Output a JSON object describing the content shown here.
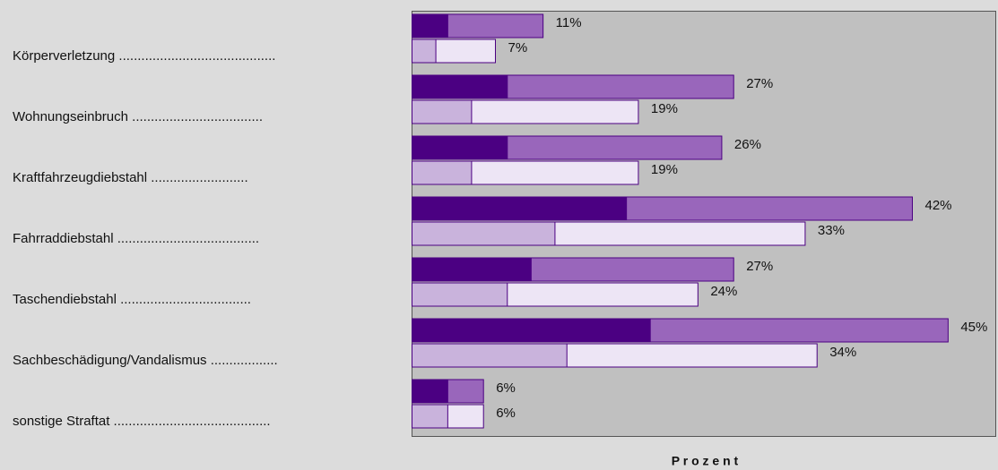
{
  "chart_data": {
    "type": "bar",
    "orientation": "horizontal",
    "categories": [
      "Körperverletzung ..........................................",
      "Wohnungseinbruch ...................................",
      "Kraftfahrzeugdiebstahl ..........................",
      "Fahrraddiebstahl ......................................",
      "Taschendiebstahl  ...................................",
      "Sachbeschädigung/Vandalismus  ..................",
      "sonstige Straftat .........................................."
    ],
    "xlabel": "P r o z e n t",
    "xlim": [
      0,
      49
    ],
    "bars": [
      {
        "values": [
          11,
          27,
          26,
          42,
          27,
          45,
          6
        ],
        "value_labels": [
          "11%",
          "27%",
          "26%",
          "42%",
          "27%",
          "45%",
          "6%"
        ],
        "color": "#9966bb",
        "inner": {
          "values": [
            3,
            8,
            8,
            18,
            10,
            20,
            3
          ],
          "color": "#4b0082"
        }
      },
      {
        "values": [
          7,
          19,
          19,
          33,
          24,
          34,
          6
        ],
        "value_labels": [
          "7%",
          "19%",
          "19%",
          "33%",
          "24%",
          "34%",
          "6%"
        ],
        "color": "#ede5f5",
        "inner": {
          "values": [
            2,
            5,
            5,
            12,
            8,
            13,
            3
          ],
          "color": "#c9b3dc"
        }
      }
    ]
  }
}
